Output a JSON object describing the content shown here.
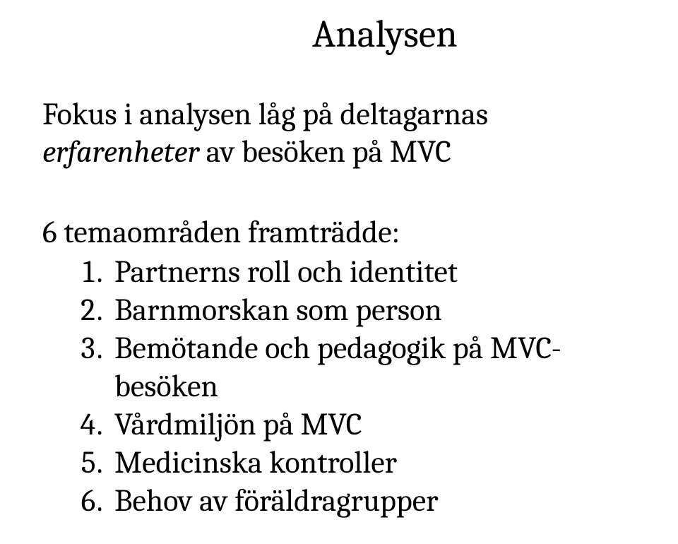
{
  "title": "Analysen",
  "intro_plain": "Fokus i analysen låg på deltagarnas ",
  "intro_italic": "erfarenheter",
  "intro_after": " av besöken på MVC",
  "subhead": "6 temaområden framträdde:",
  "themes": [
    "Partnerns roll och identitet",
    "Barnmorskan som person",
    "Bemötande och pedagogik på MVC-besöken",
    "Vårdmiljön på MVC",
    "Medicinska kontroller",
    "Behov av föräldragrupper"
  ]
}
